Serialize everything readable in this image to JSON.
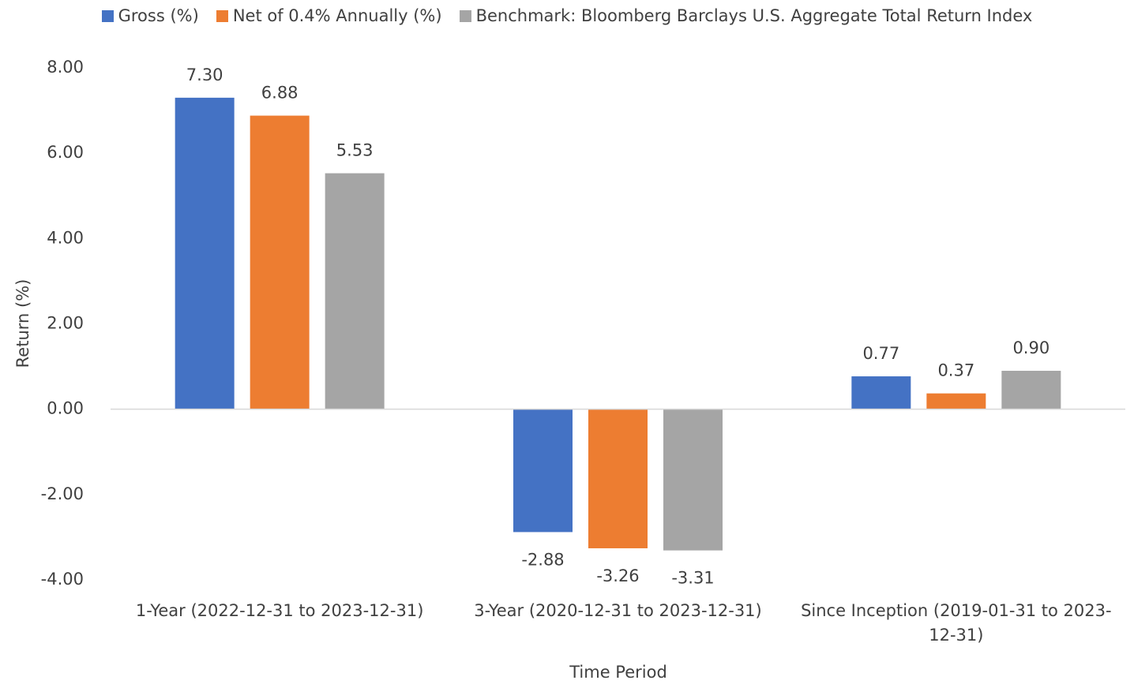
{
  "chart_data": {
    "type": "bar",
    "x_label": "Time Period",
    "y_label": "Return (%)",
    "categories": [
      "1-Year (2022-12-31 to 2023-12-31)",
      "3-Year (2020-12-31 to 2023-12-31)",
      "Since Inception (2019-01-31 to 2023-12-31)"
    ],
    "series": [
      {
        "name": "Gross (%)",
        "color": "#4472c4",
        "values": [
          7.3,
          -2.88,
          0.77
        ],
        "value_labels": [
          "7.30",
          "-2.88",
          "0.77"
        ]
      },
      {
        "name": "Net of 0.4% Annually (%)",
        "color": "#ed7d31",
        "values": [
          6.88,
          -3.26,
          0.37
        ],
        "value_labels": [
          "6.88",
          "-3.26",
          "0.37"
        ]
      },
      {
        "name": "Benchmark: Bloomberg Barclays U.S. Aggregate Total Return Index",
        "color": "#a5a5a5",
        "values": [
          5.53,
          -3.31,
          0.9
        ],
        "value_labels": [
          "5.53",
          "-3.31",
          "0.90"
        ]
      }
    ],
    "ylim": [
      -4,
      8
    ],
    "yticks": [
      {
        "value": -4,
        "label": "-4.00"
      },
      {
        "value": -2,
        "label": "-2.00"
      },
      {
        "value": 0,
        "label": "0.00"
      },
      {
        "value": 2,
        "label": "2.00"
      },
      {
        "value": 4,
        "label": "4.00"
      },
      {
        "value": 6,
        "label": "6.00"
      },
      {
        "value": 8,
        "label": "8.00"
      }
    ],
    "legend": "top",
    "grid": false
  }
}
